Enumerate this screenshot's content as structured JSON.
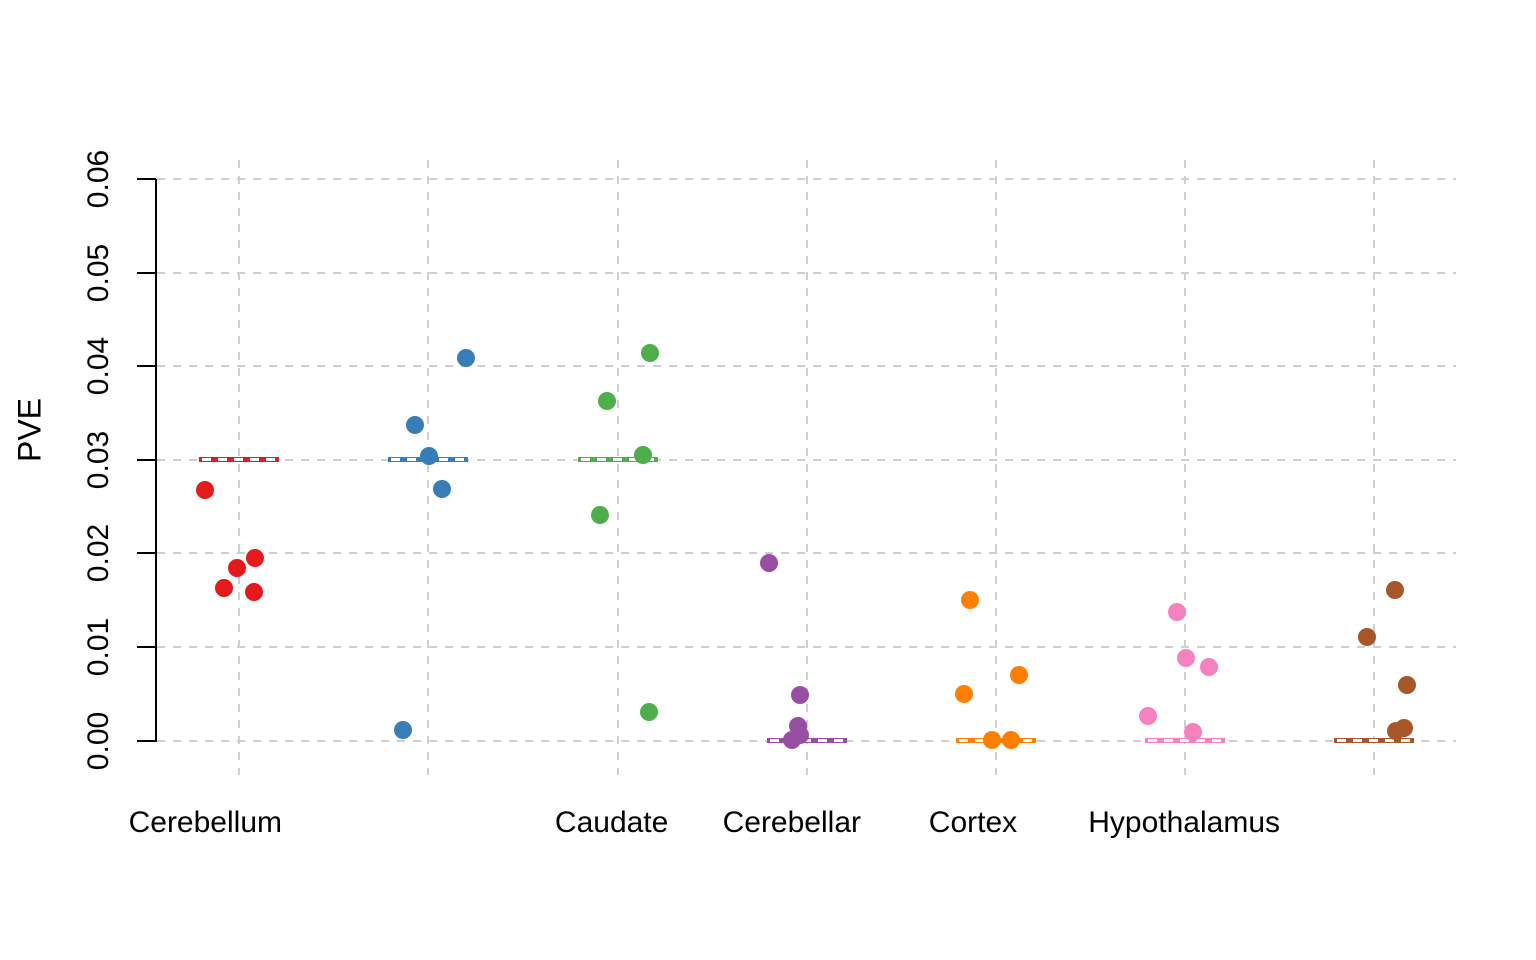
{
  "chart_data": {
    "type": "scatter",
    "subtype": "strip-plot with per-group reference lines",
    "title": "",
    "xlabel": "",
    "ylabel": "PVE",
    "ylim": [
      0,
      0.06
    ],
    "y_ticks": [
      {
        "value": 0.0,
        "label": "0.00"
      },
      {
        "value": 0.01,
        "label": "0.01"
      },
      {
        "value": 0.02,
        "label": "0.02"
      },
      {
        "value": 0.03,
        "label": "0.03"
      },
      {
        "value": 0.04,
        "label": "0.04"
      },
      {
        "value": 0.05,
        "label": "0.05"
      },
      {
        "value": 0.06,
        "label": "0.06"
      }
    ],
    "grid": {
      "style": "dashed",
      "color": "#cfcfcf",
      "horizontal": true,
      "vertical": true
    },
    "legend": "none",
    "groups": [
      {
        "label": "Cerebellum",
        "color": "#e41a1c",
        "reference_line": 0.03,
        "points": [
          {
            "pve": 0.0268,
            "jitter": -34
          },
          {
            "pve": 0.0195,
            "jitter": 16
          },
          {
            "pve": 0.0184,
            "jitter": -2
          },
          {
            "pve": 0.0163,
            "jitter": -15
          },
          {
            "pve": 0.0159,
            "jitter": 15
          }
        ]
      },
      {
        "label": "",
        "color": "#377eb8",
        "reference_line": 0.03,
        "points": [
          {
            "pve": 0.0409,
            "jitter": 38
          },
          {
            "pve": 0.0337,
            "jitter": -13
          },
          {
            "pve": 0.0304,
            "jitter": 1
          },
          {
            "pve": 0.0269,
            "jitter": 14
          },
          {
            "pve": 0.0011,
            "jitter": -25
          }
        ]
      },
      {
        "label": "Caudate",
        "color": "#4daf4a",
        "reference_line": 0.03,
        "points": [
          {
            "pve": 0.0414,
            "jitter": 32
          },
          {
            "pve": 0.0363,
            "jitter": -11
          },
          {
            "pve": 0.0305,
            "jitter": 25
          },
          {
            "pve": 0.0241,
            "jitter": -18
          },
          {
            "pve": 0.0031,
            "jitter": 31
          }
        ]
      },
      {
        "label": "Cerebellar",
        "color": "#984ea3",
        "reference_line": 0.0,
        "points": [
          {
            "pve": 0.019,
            "jitter": -38
          },
          {
            "pve": 0.0049,
            "jitter": -7
          },
          {
            "pve": 0.0016,
            "jitter": -9
          },
          {
            "pve": 0.0006,
            "jitter": -7
          },
          {
            "pve": 0.0001,
            "jitter": -15
          }
        ]
      },
      {
        "label": "Cortex",
        "color": "#ff7f00",
        "reference_line": 0.0,
        "points": [
          {
            "pve": 0.015,
            "jitter": -26
          },
          {
            "pve": 0.007,
            "jitter": 23
          },
          {
            "pve": 0.005,
            "jitter": -32
          },
          {
            "pve": 0.0001,
            "jitter": -4
          },
          {
            "pve": 0.0001,
            "jitter": 15
          }
        ]
      },
      {
        "label": "Hypothalamus",
        "color": "#f781bf",
        "reference_line": 0.0,
        "points": [
          {
            "pve": 0.0137,
            "jitter": -8
          },
          {
            "pve": 0.0088,
            "jitter": 1
          },
          {
            "pve": 0.0079,
            "jitter": 24
          },
          {
            "pve": 0.0026,
            "jitter": -37
          },
          {
            "pve": 0.0009,
            "jitter": 8
          }
        ]
      },
      {
        "label": "",
        "color": "#a65628",
        "reference_line": 0.0,
        "points": [
          {
            "pve": 0.0161,
            "jitter": 21
          },
          {
            "pve": 0.0111,
            "jitter": -7
          },
          {
            "pve": 0.0059,
            "jitter": 33
          },
          {
            "pve": 0.0014,
            "jitter": 30
          },
          {
            "pve": 0.001,
            "jitter": 22
          }
        ]
      }
    ]
  }
}
